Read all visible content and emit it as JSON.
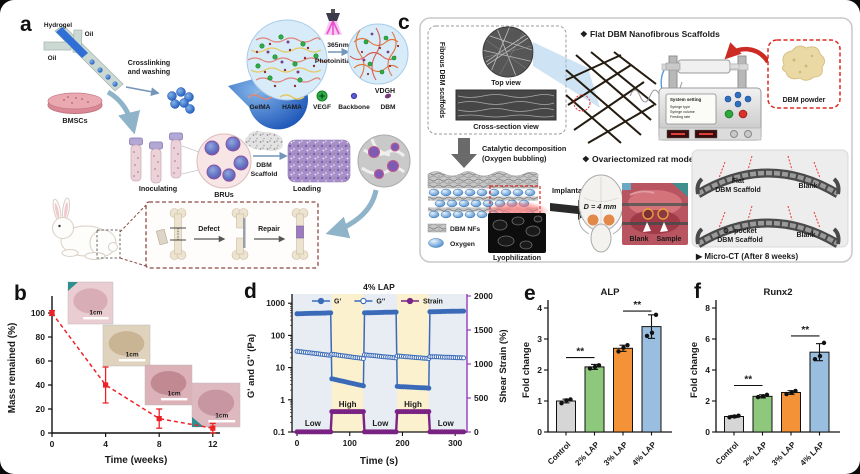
{
  "panels": {
    "a": {
      "label": "a",
      "microfluidic": {
        "hydrogel": "Hydrogel",
        "oil_top": "Oil",
        "oil_left": "Oil"
      },
      "crosslinking_line1": "Crosslinking",
      "crosslinking_line2": "and washing",
      "uv_line1": "365nm",
      "uv_line2": "Photoinitiator",
      "vdgh": "VDGH",
      "legend": {
        "gelma": "GelMA",
        "hama": "HAMA",
        "vegf": "VEGF",
        "backbone": "Backbone",
        "dbm": "DBM"
      },
      "bmscs": "BMSCs",
      "inoculating": "Inoculating",
      "brus": "BRUs",
      "dbm_scaffold_line1": "DBM",
      "dbm_scaffold_line2": "Scaffold",
      "loading": "Loading",
      "defect": "Defect",
      "repair": "Repair"
    },
    "b": {
      "label": "b"
    },
    "c": {
      "label": "c",
      "header_flat": "❖ Flat DBM Nanofibrous Scaffolds",
      "fibrous_label": "Fibrous DBM scaffolds",
      "top_view": "Top view",
      "cross_section_view": "Cross-section view",
      "machine_screen": {
        "title": "System setting",
        "row1": "Syringe type",
        "row2": "Syringe volume",
        "row3": "Feeding rate"
      },
      "dbm_powder": "DBM powder",
      "catalytic_line1": "Catalytic decomposition",
      "catalytic_line2": "(Oxygen bubbling)",
      "header_rat": "❖ Ovariectomized rat model",
      "implantation": "Implantation",
      "defect_diameter": "D = 4 mm",
      "photo_blank": "Blank",
      "photo_sample": "Sample",
      "legend_dbm_nfs": "DBM NFs",
      "legend_oxygen": "Oxygen",
      "lyophilization": "Lyophilization",
      "ct_top_line1": "Flat",
      "ct_top_line2": "DBM Scaffold",
      "ct_top_blank": "Blank",
      "ct_bottom_line1": "O₂-pocket",
      "ct_bottom_line2": "DBM Scaffold",
      "ct_bottom_blank": "Blank",
      "microct_caption": "▶ Micro-CT (After 8 weeks)"
    },
    "d": {
      "label": "d"
    },
    "e": {
      "label": "e"
    },
    "f": {
      "label": "f"
    }
  },
  "chart_data": [
    {
      "id": "b",
      "type": "line",
      "xlabel": "Time (weeks)",
      "ylabel": "Mass remained (%)",
      "x": [
        0,
        4,
        8,
        12
      ],
      "y": [
        100,
        40,
        12,
        4
      ],
      "yerr": [
        2,
        15,
        8,
        4
      ],
      "xticks": [
        0,
        4,
        8,
        12
      ],
      "yticks": [
        0,
        20,
        40,
        60,
        80,
        100
      ],
      "ylim": [
        0,
        110
      ],
      "line_color": "#ec2227",
      "line_style": "dashed",
      "marker": "square",
      "inset_scale_label": "1cm"
    },
    {
      "id": "d",
      "type": "line",
      "title": "4% LAP",
      "xlabel": "Time (s)",
      "ylabel_left": "G' and G'' (Pa)",
      "ylabel_right": "Shear Strain (%)",
      "xticks": [
        0,
        100,
        200,
        300
      ],
      "xlim": [
        0,
        318
      ],
      "yscale_left": "log",
      "yticks_left": [
        0.1,
        1,
        10,
        100,
        1000
      ],
      "ylim_left": [
        0.1,
        1000
      ],
      "yticks_right": [
        0,
        500,
        1000,
        1500,
        2000
      ],
      "ylim_right": [
        0,
        2000
      ],
      "high_bands": [
        [
          66,
          126
        ],
        [
          190,
          250
        ]
      ],
      "band_color_high": "#fbf1cf",
      "band_color_low": "#e8ecf3",
      "right_axis_color": "#8b2fb3",
      "annotations": [
        {
          "text": "Low",
          "t": 30
        },
        {
          "text": "High",
          "t": 96
        },
        {
          "text": "Low",
          "t": 158
        },
        {
          "text": "High",
          "t": 220
        },
        {
          "text": "Low",
          "t": 282
        }
      ],
      "series": [
        {
          "name": "G'",
          "axis": "left",
          "marker": "filled",
          "color": "#3a6ab8",
          "segments": [
            [
              0,
              64,
              470,
              500
            ],
            [
              66,
              126,
              4.5,
              2.7
            ],
            [
              128,
              188,
              500,
              530
            ],
            [
              190,
              250,
              2.6,
              2.3
            ],
            [
              252,
              316,
              540,
              570
            ]
          ]
        },
        {
          "name": "G''",
          "axis": "left",
          "marker": "open",
          "color": "#3a6ab8",
          "segments": [
            [
              0,
              64,
              32,
              24
            ],
            [
              66,
              126,
              26,
              19
            ],
            [
              128,
              188,
              25,
              20
            ],
            [
              190,
              250,
              23,
              19
            ],
            [
              252,
              316,
              22,
              20
            ]
          ]
        },
        {
          "name": "Strain",
          "axis": "right",
          "marker": "filled",
          "color": "#7a2384",
          "segments": [
            [
              0,
              64,
              1,
              1
            ],
            [
              66,
              126,
              300,
              300
            ],
            [
              128,
              188,
              1,
              1
            ],
            [
              190,
              250,
              300,
              300
            ],
            [
              252,
              316,
              1,
              1
            ]
          ]
        }
      ]
    },
    {
      "id": "e",
      "type": "bar",
      "title": "ALP",
      "ylabel": "Fold change",
      "categories": [
        "Control",
        "2% LAP",
        "3% LAP",
        "4% LAP"
      ],
      "values": [
        1.0,
        2.1,
        2.7,
        3.4
      ],
      "errors": [
        0.06,
        0.08,
        0.1,
        0.38
      ],
      "points": [
        [
          0.93,
          1.02,
          1.05
        ],
        [
          2.05,
          2.1,
          2.15
        ],
        [
          2.6,
          2.72,
          2.8
        ],
        [
          3.1,
          3.2,
          3.78
        ]
      ],
      "bar_colors": [
        "#d6d6d6",
        "#8ec87c",
        "#f39237",
        "#99bedf"
      ],
      "yticks": [
        0,
        1,
        2,
        3,
        4
      ],
      "ylim": [
        0,
        4
      ],
      "significance": [
        {
          "from": 0,
          "to": 1,
          "label": "**",
          "y": 2.4
        },
        {
          "from": 2,
          "to": 3,
          "label": "**",
          "y": 3.9
        }
      ]
    },
    {
      "id": "f",
      "type": "bar",
      "title": "Runx2",
      "ylabel": "Fold change",
      "categories": [
        "Control",
        "2% LAP",
        "3% LAP",
        "4% LAP"
      ],
      "values": [
        1.0,
        2.3,
        2.55,
        5.15
      ],
      "errors": [
        0.07,
        0.1,
        0.12,
        0.55
      ],
      "points": [
        [
          0.95,
          1.0,
          1.05
        ],
        [
          2.25,
          2.3,
          2.4
        ],
        [
          2.45,
          2.55,
          2.65
        ],
        [
          4.7,
          4.9,
          5.75
        ]
      ],
      "bar_colors": [
        "#d6d6d6",
        "#8ec87c",
        "#f39237",
        "#99bedf"
      ],
      "yticks": [
        0,
        2,
        4,
        6,
        8
      ],
      "ylim": [
        0,
        8
      ],
      "significance": [
        {
          "from": 0,
          "to": 1,
          "label": "**",
          "y": 3.0
        },
        {
          "from": 2,
          "to": 3,
          "label": "**",
          "y": 6.2
        }
      ]
    }
  ]
}
